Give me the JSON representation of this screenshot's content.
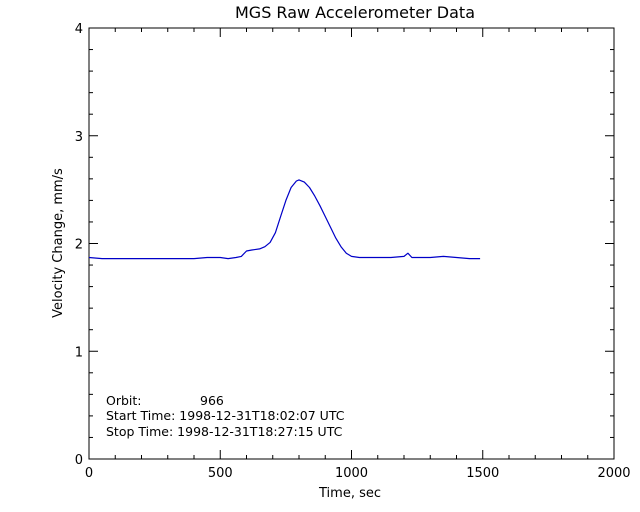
{
  "chart_data": {
    "type": "line",
    "title": "MGS Raw Accelerometer Data",
    "xlabel": "Time, sec",
    "ylabel": "Velocity Change, mm/s",
    "xlim": [
      0,
      2000
    ],
    "ylim": [
      0,
      4
    ],
    "xticks": [
      0,
      500,
      1000,
      1500,
      2000
    ],
    "yticks": [
      0,
      1,
      2,
      3,
      4
    ],
    "xtick_labels": [
      "0",
      "500",
      "1000",
      "1500",
      "2000"
    ],
    "ytick_labels": [
      "0",
      "1",
      "2",
      "3",
      "4"
    ],
    "grid": false,
    "line_color": "#0000c8",
    "series": [
      {
        "x": [
          0,
          50,
          100,
          150,
          200,
          300,
          400,
          450,
          500,
          530,
          560,
          580,
          600,
          620,
          650,
          670,
          690,
          710,
          730,
          750,
          770,
          790,
          800,
          820,
          840,
          860,
          880,
          900,
          920,
          940,
          960,
          980,
          1000,
          1030,
          1100,
          1150,
          1200,
          1215,
          1230,
          1300,
          1350,
          1400,
          1450,
          1490
        ],
        "y": [
          1.87,
          1.86,
          1.86,
          1.86,
          1.86,
          1.86,
          1.86,
          1.87,
          1.87,
          1.86,
          1.87,
          1.88,
          1.93,
          1.94,
          1.95,
          1.97,
          2.01,
          2.1,
          2.25,
          2.4,
          2.52,
          2.58,
          2.59,
          2.57,
          2.52,
          2.44,
          2.35,
          2.25,
          2.15,
          2.05,
          1.97,
          1.91,
          1.88,
          1.87,
          1.87,
          1.87,
          1.88,
          1.91,
          1.87,
          1.87,
          1.88,
          1.87,
          1.86,
          1.86
        ]
      }
    ]
  },
  "annotations": {
    "orbit_label": "Orbit:",
    "orbit_value": "966",
    "start_time": "Start Time: 1998-12-31T18:02:07 UTC",
    "stop_time": "Stop Time: 1998-12-31T18:27:15 UTC"
  }
}
